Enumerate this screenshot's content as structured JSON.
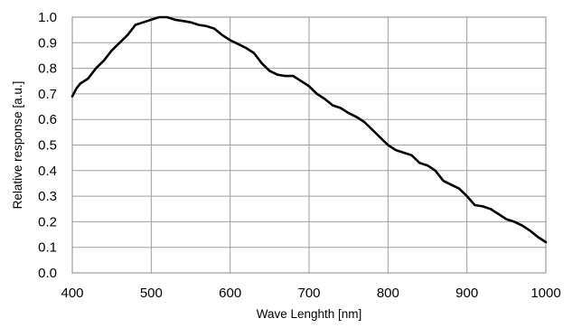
{
  "chart_data": {
    "type": "line",
    "title": "",
    "xlabel": "Wave Lenghth [nm]",
    "ylabel": "Relative response [a.u.]",
    "xlim": [
      400,
      1000
    ],
    "ylim": [
      0.0,
      1.0
    ],
    "x_ticks": [
      400,
      500,
      600,
      700,
      800,
      900,
      1000
    ],
    "y_ticks": [
      0.0,
      0.1,
      0.2,
      0.3,
      0.4,
      0.5,
      0.6,
      0.7,
      0.8,
      0.9,
      1.0
    ],
    "x_tick_labels": [
      "400",
      "500",
      "600",
      "700",
      "800",
      "900",
      "1000"
    ],
    "y_tick_labels": [
      "0.0",
      "0.1",
      "0.2",
      "0.3",
      "0.4",
      "0.5",
      "0.6",
      "0.7",
      "0.8",
      "0.9",
      "1.0"
    ],
    "grid": true,
    "colors": {
      "line": "#000000",
      "grid": "#9e9e9e",
      "border": "#8a8a8a"
    },
    "series": [
      {
        "x": [
          400,
          405,
          410,
          420,
          430,
          440,
          450,
          460,
          470,
          480,
          490,
          500,
          510,
          520,
          530,
          540,
          550,
          560,
          570,
          580,
          590,
          600,
          610,
          620,
          630,
          640,
          650,
          660,
          670,
          680,
          690,
          700,
          710,
          720,
          730,
          740,
          750,
          760,
          770,
          780,
          790,
          800,
          810,
          820,
          830,
          840,
          850,
          860,
          870,
          880,
          890,
          900,
          910,
          920,
          930,
          940,
          950,
          960,
          970,
          980,
          990,
          1000
        ],
        "y": [
          0.69,
          0.72,
          0.74,
          0.76,
          0.8,
          0.83,
          0.87,
          0.9,
          0.93,
          0.97,
          0.98,
          0.99,
          1.0,
          1.0,
          0.99,
          0.985,
          0.98,
          0.97,
          0.965,
          0.955,
          0.93,
          0.91,
          0.895,
          0.88,
          0.86,
          0.82,
          0.79,
          0.775,
          0.77,
          0.77,
          0.75,
          0.73,
          0.7,
          0.68,
          0.655,
          0.645,
          0.625,
          0.61,
          0.59,
          0.56,
          0.53,
          0.5,
          0.48,
          0.47,
          0.46,
          0.43,
          0.42,
          0.4,
          0.36,
          0.345,
          0.33,
          0.3,
          0.265,
          0.26,
          0.25,
          0.23,
          0.21,
          0.2,
          0.185,
          0.165,
          0.14,
          0.12
        ]
      }
    ]
  }
}
